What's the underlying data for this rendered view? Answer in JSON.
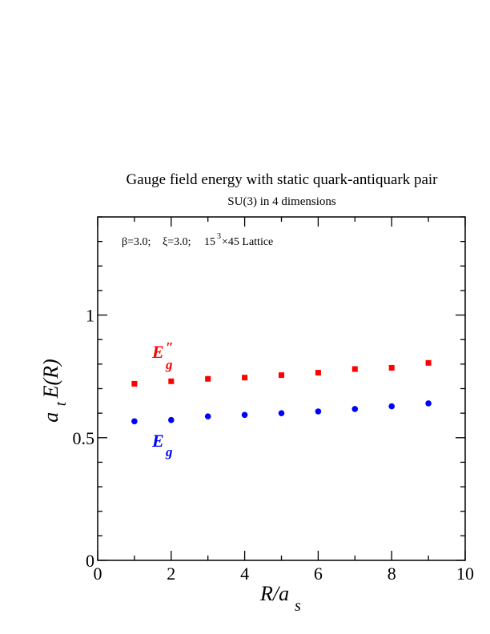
{
  "chart_data": {
    "type": "scatter",
    "title": "Gauge field energy with static quark-antiquark pair",
    "subtitle": "SU(3) in 4 dimensions",
    "annotation": {
      "beta": "β=3.0;",
      "xi": "ξ=3.0;",
      "lattice_base": "15",
      "lattice_exp": "3",
      "lattice_rest": "×45 Lattice"
    },
    "xlabel": {
      "main": "R/a",
      "sub": "s"
    },
    "ylabel": {
      "pre": "a",
      "sub": "t",
      "post": "E(R)"
    },
    "xlim": [
      0,
      10
    ],
    "ylim": [
      0,
      1.4
    ],
    "x_ticks": [
      "0",
      "2",
      "4",
      "6",
      "8",
      "10"
    ],
    "y_ticks": [
      "0",
      "0.5",
      "1"
    ],
    "grid": false,
    "series": [
      {
        "name": "E″g",
        "label": {
          "main": "E",
          "sup": "″",
          "sub": "g"
        },
        "color": "#ff0000",
        "marker": "square",
        "x": [
          1,
          2,
          3,
          4,
          5,
          6,
          7,
          8,
          9
        ],
        "y": [
          0.72,
          0.73,
          0.74,
          0.745,
          0.755,
          0.765,
          0.78,
          0.785,
          0.805
        ]
      },
      {
        "name": "Eg",
        "label": {
          "main": "E",
          "sub": "g"
        },
        "color": "#0000ff",
        "marker": "circle",
        "x": [
          1,
          2,
          3,
          4,
          5,
          6,
          7,
          8,
          9
        ],
        "y": [
          0.567,
          0.572,
          0.587,
          0.593,
          0.6,
          0.607,
          0.617,
          0.628,
          0.64
        ]
      }
    ]
  }
}
